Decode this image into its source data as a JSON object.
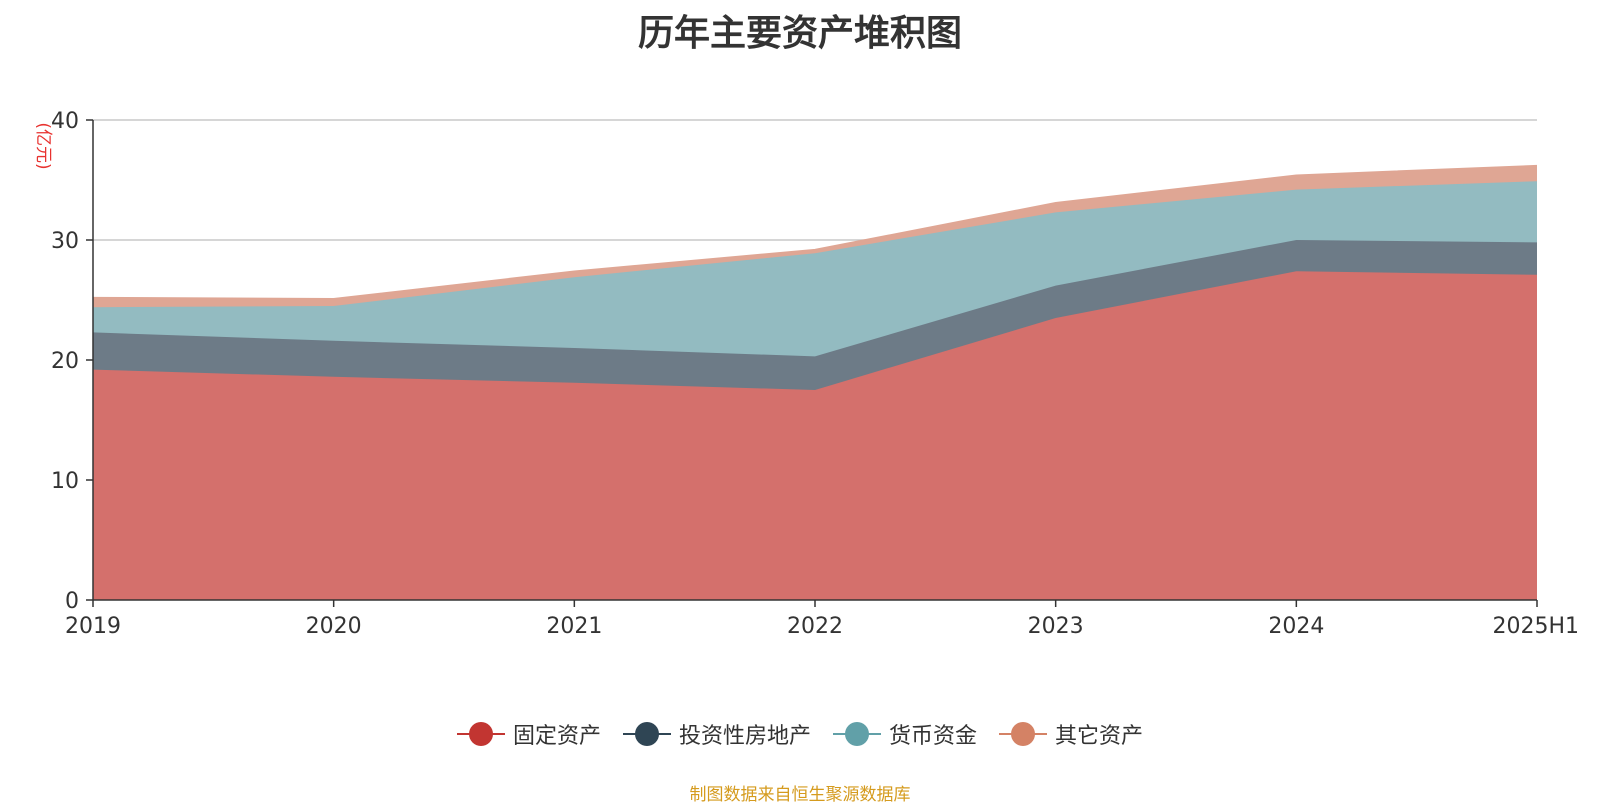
{
  "chart_data": {
    "type": "area",
    "stacked": true,
    "title": "历年主要资产堆积图",
    "y_unit": "(亿元)",
    "categories": [
      "2019",
      "2020",
      "2021",
      "2022",
      "2023",
      "2024",
      "2025H1"
    ],
    "ylim": [
      0,
      40
    ],
    "yticks": [
      0,
      10,
      20,
      30,
      40
    ],
    "grid": true,
    "legend_position": "bottom",
    "series": [
      {
        "name": "固定资产",
        "values": [
          19.2,
          18.6,
          18.1,
          17.5,
          23.5,
          27.4,
          27.1
        ],
        "color": "#c23531",
        "fill": "#d4706c"
      },
      {
        "name": "投资性房地产",
        "values": [
          3.1,
          3.0,
          2.9,
          2.8,
          2.7,
          2.6,
          2.7
        ],
        "color": "#2f4554",
        "fill": "#6d7b87"
      },
      {
        "name": "货币资金",
        "values": [
          2.1,
          2.9,
          5.9,
          8.6,
          6.1,
          4.2,
          5.1
        ],
        "color": "#61a0a8",
        "fill": "#93bbc1"
      },
      {
        "name": "其它资产",
        "values": [
          0.8,
          0.6,
          0.5,
          0.3,
          0.8,
          1.2,
          1.3
        ],
        "color": "#d48265",
        "fill": "#dfa694"
      }
    ]
  },
  "source_note": "制图数据来自恒生聚源数据库"
}
